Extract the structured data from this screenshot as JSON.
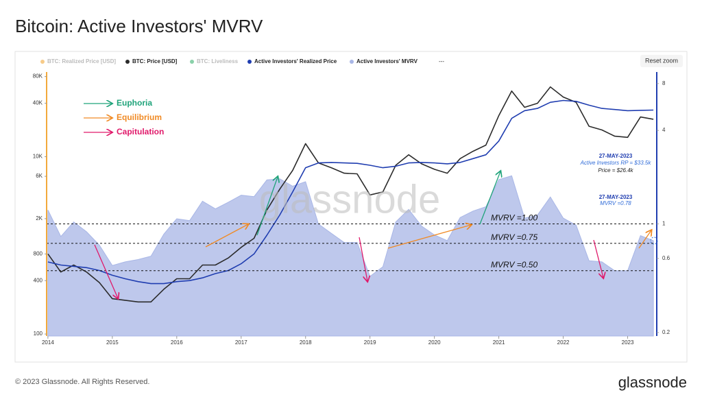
{
  "chart_data": {
    "type": "line",
    "title": "Bitcoin: Active Investors' MVRV",
    "footer": "© 2023 Glassnode. All Rights Reserved.",
    "logo": "glassnode",
    "watermark": "glassnode",
    "reset_zoom": "Reset zoom",
    "log_scale": true,
    "y2_log": true,
    "hidden_series": [
      {
        "name": "BTC: Realized Price [USD]",
        "color": "#f2a93b"
      },
      {
        "name": "BTC: Liveliness",
        "color": "#3cb371"
      }
    ],
    "legend_extra": "---",
    "x": [
      2014.0,
      2014.2,
      2014.4,
      2014.6,
      2014.8,
      2015.0,
      2015.2,
      2015.4,
      2015.6,
      2015.8,
      2016.0,
      2016.2,
      2016.4,
      2016.6,
      2016.8,
      2017.0,
      2017.2,
      2017.4,
      2017.6,
      2017.8,
      2018.0,
      2018.2,
      2018.4,
      2018.6,
      2018.8,
      2019.0,
      2019.2,
      2019.4,
      2019.6,
      2019.8,
      2020.0,
      2020.2,
      2020.4,
      2020.6,
      2020.8,
      2021.0,
      2021.2,
      2021.4,
      2021.6,
      2021.8,
      2022.0,
      2022.2,
      2022.4,
      2022.6,
      2022.8,
      2023.0,
      2023.2,
      2023.4
    ],
    "series": [
      {
        "name": "Active Investors' MVRV",
        "color": "#a8b6e6",
        "axis": "y2",
        "values": [
          1.23,
          0.83,
          1.03,
          0.89,
          0.73,
          0.54,
          0.57,
          0.59,
          0.62,
          0.86,
          1.08,
          1.05,
          1.4,
          1.25,
          1.38,
          1.53,
          1.5,
          1.92,
          1.95,
          1.75,
          1.87,
          1.0,
          0.87,
          0.76,
          0.76,
          0.46,
          0.53,
          1.03,
          1.24,
          0.97,
          0.85,
          0.78,
          1.1,
          1.21,
          1.29,
          1.93,
          2.04,
          1.09,
          1.14,
          1.49,
          1.09,
          0.98,
          0.58,
          0.57,
          0.5,
          0.5,
          0.84,
          0.78
        ]
      },
      {
        "name": "BTC: Price [USD]",
        "color": "#2b2b2b",
        "values": [
          800,
          500,
          600,
          500,
          380,
          250,
          240,
          230,
          230,
          320,
          420,
          420,
          600,
          600,
          720,
          950,
          1200,
          2500,
          4300,
          7000,
          14000,
          8500,
          7500,
          6500,
          6400,
          3700,
          4000,
          8000,
          10500,
          8300,
          7200,
          6500,
          9500,
          11500,
          13500,
          29000,
          55000,
          36000,
          40000,
          61000,
          47000,
          41000,
          22000,
          20000,
          17000,
          16500,
          28000,
          26400
        ]
      },
      {
        "name": "Active Investors' Realized Price",
        "color": "#1f3db0",
        "values": [
          650,
          600,
          580,
          560,
          520,
          460,
          420,
          390,
          370,
          370,
          390,
          400,
          430,
          480,
          520,
          620,
          800,
          1300,
          2200,
          4000,
          7500,
          8500,
          8600,
          8500,
          8400,
          8000,
          7500,
          7800,
          8500,
          8600,
          8500,
          8300,
          8600,
          9500,
          10500,
          15000,
          27000,
          33000,
          35000,
          41000,
          43000,
          42000,
          38000,
          35000,
          34000,
          33000,
          33300,
          33500
        ]
      }
    ],
    "xlim": [
      2013.98,
      2023.42
    ],
    "xticks": [
      2014,
      2015,
      2016,
      2017,
      2018,
      2019,
      2020,
      2021,
      2022,
      2023
    ],
    "ylim": [
      95,
      90000
    ],
    "yticks": [
      100,
      400,
      800,
      {
        "value": 2000,
        "label": "2K"
      },
      {
        "value": 6000,
        "label": "6K"
      },
      {
        "value": 10000,
        "label": "10K"
      },
      {
        "value": 40000,
        "label": "40K"
      },
      {
        "value": 80000,
        "label": "80K"
      }
    ],
    "y2lim": [
      0.19,
      9.5
    ],
    "y2ticks": [
      0.2,
      0.6,
      1,
      4,
      8
    ],
    "reference_lines": [
      {
        "value": 1,
        "label": "MVRV =1.00"
      },
      {
        "value": 0.75,
        "label": "MVRV =0.75"
      },
      {
        "value": 0.5,
        "label": "MVRV =0.50"
      }
    ],
    "phases": [
      {
        "label": "Euphoria",
        "color": "#1fa37a"
      },
      {
        "label": "Equilibrium",
        "color": "#f08a24"
      },
      {
        "label": "Capitulation",
        "color": "#e0196a"
      }
    ],
    "callouts": {
      "date1": "27-MAY-2023",
      "rp": "Active Investors RP = $33.5k",
      "price": "Price = $26.4k",
      "date2": "27-MAY-2023",
      "mvrv": "MVRV =0.78"
    }
  }
}
